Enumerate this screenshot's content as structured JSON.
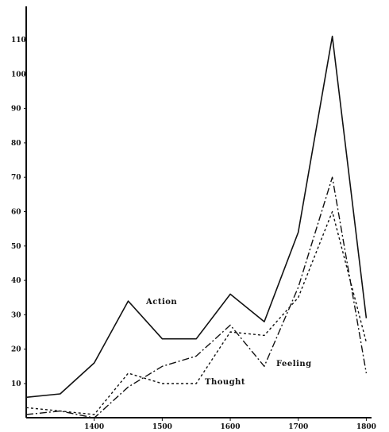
{
  "chart_data": {
    "type": "line",
    "title": "",
    "xlabel": "",
    "ylabel": "",
    "x": [
      1300,
      1350,
      1400,
      1450,
      1500,
      1550,
      1600,
      1650,
      1700,
      1750,
      1800
    ],
    "xlim": [
      1300,
      1810
    ],
    "ylim": [
      0,
      120
    ],
    "x_ticks": [
      1400,
      1500,
      1600,
      1700,
      1800
    ],
    "y_ticks": [
      10,
      20,
      30,
      40,
      50,
      60,
      70,
      80,
      90,
      100,
      110
    ],
    "x_tick_labels": [
      "1400",
      "1500",
      "1600",
      "1700",
      "1800"
    ],
    "y_tick_labels": [
      "10",
      "20",
      "30",
      "40",
      "50",
      "60",
      "70",
      "80",
      "90",
      "100",
      "110"
    ],
    "grid": false,
    "series": [
      {
        "name": "Action",
        "style": "solid",
        "values": [
          6,
          7,
          16,
          34,
          23,
          23,
          36,
          28,
          54,
          111,
          29
        ]
      },
      {
        "name": "Feeling",
        "style": "dashdot",
        "values": [
          1,
          2,
          0,
          9,
          15,
          18,
          27,
          15,
          38,
          70,
          13
        ]
      },
      {
        "name": "Thought",
        "style": "dotted",
        "values": [
          3,
          2,
          1,
          13,
          10,
          10,
          25,
          24,
          35,
          60,
          22
        ]
      }
    ]
  }
}
